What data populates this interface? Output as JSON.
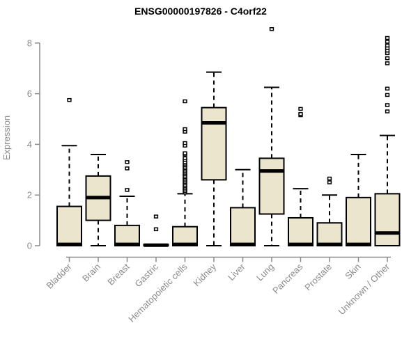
{
  "chart_data": {
    "type": "box",
    "title": "ENSG00000197826 - C4orf22",
    "ylabel": "Expression",
    "xlabel": "",
    "ylim": [
      0,
      8
    ],
    "yticks": [
      0,
      2,
      4,
      6,
      8
    ],
    "grid": false,
    "legend": false,
    "categories": [
      "Bladder",
      "Brain",
      "Breast",
      "Gastric",
      "Hematopoietic cells",
      "Kidney",
      "Liver",
      "Lung",
      "Pancreas",
      "Prostate",
      "Skin",
      "Unknown / Other"
    ],
    "series": [
      {
        "name": "Bladder",
        "min": 0,
        "q1": 0,
        "median": 0.05,
        "q3": 1.55,
        "max": 3.95,
        "outliers": [
          5.75
        ]
      },
      {
        "name": "Brain",
        "min": 0,
        "q1": 1.0,
        "median": 1.9,
        "q3": 2.75,
        "max": 3.6,
        "outliers": []
      },
      {
        "name": "Breast",
        "min": 0,
        "q1": 0,
        "median": 0.05,
        "q3": 0.8,
        "max": 1.95,
        "outliers": [
          2.2,
          3.05,
          3.3
        ]
      },
      {
        "name": "Gastric",
        "min": 0,
        "q1": 0,
        "median": 0.02,
        "q3": 0.05,
        "max": 0.05,
        "outliers": [
          0.65,
          1.15
        ]
      },
      {
        "name": "Hematopoietic cells",
        "min": 0,
        "q1": 0,
        "median": 0.05,
        "q3": 0.75,
        "max": 2.05,
        "outliers": [
          2.1,
          2.16,
          2.22,
          2.28,
          2.34,
          2.4,
          2.46,
          2.52,
          2.58,
          2.64,
          2.7,
          2.76,
          2.82,
          2.88,
          2.94,
          3.0,
          3.06,
          3.12,
          3.18,
          3.24,
          3.3,
          3.38,
          3.45,
          3.6,
          3.65,
          3.95,
          4.05,
          4.5,
          4.6,
          5.7
        ]
      },
      {
        "name": "Kidney",
        "min": 0,
        "q1": 2.6,
        "median": 4.85,
        "q3": 5.45,
        "max": 6.85,
        "outliers": []
      },
      {
        "name": "Liver",
        "min": 0,
        "q1": 0,
        "median": 0.05,
        "q3": 1.5,
        "max": 3.0,
        "outliers": []
      },
      {
        "name": "Lung",
        "min": 0,
        "q1": 1.25,
        "median": 2.95,
        "q3": 3.45,
        "max": 6.25,
        "outliers": [
          8.55
        ]
      },
      {
        "name": "Pancreas",
        "min": 0,
        "q1": 0,
        "median": 0.05,
        "q3": 1.1,
        "max": 2.25,
        "outliers": [
          5.15,
          5.2,
          5.4
        ]
      },
      {
        "name": "Prostate",
        "min": 0,
        "q1": 0,
        "median": 0.05,
        "q3": 0.9,
        "max": 2.0,
        "outliers": [
          2.5,
          2.65
        ]
      },
      {
        "name": "Skin",
        "min": 0,
        "q1": 0,
        "median": 0.05,
        "q3": 1.9,
        "max": 3.6,
        "outliers": []
      },
      {
        "name": "Unknown / Other",
        "min": 0,
        "q1": 0,
        "median": 0.5,
        "q3": 2.05,
        "max": 4.35,
        "outliers": [
          5.3,
          5.55,
          5.95,
          6.2,
          7.2,
          7.4,
          7.6,
          7.7,
          7.8,
          7.9,
          8.05,
          8.2
        ]
      }
    ],
    "colors": {
      "box_fill": "#ECE5CD",
      "box_border": "#000000",
      "median": "#000000",
      "whisker": "#000000",
      "outlier": "#000000",
      "axis": "#8A8A8A",
      "tick_label": "#8A8A8A",
      "title": "#000000",
      "background": "#FFFFFF"
    }
  }
}
